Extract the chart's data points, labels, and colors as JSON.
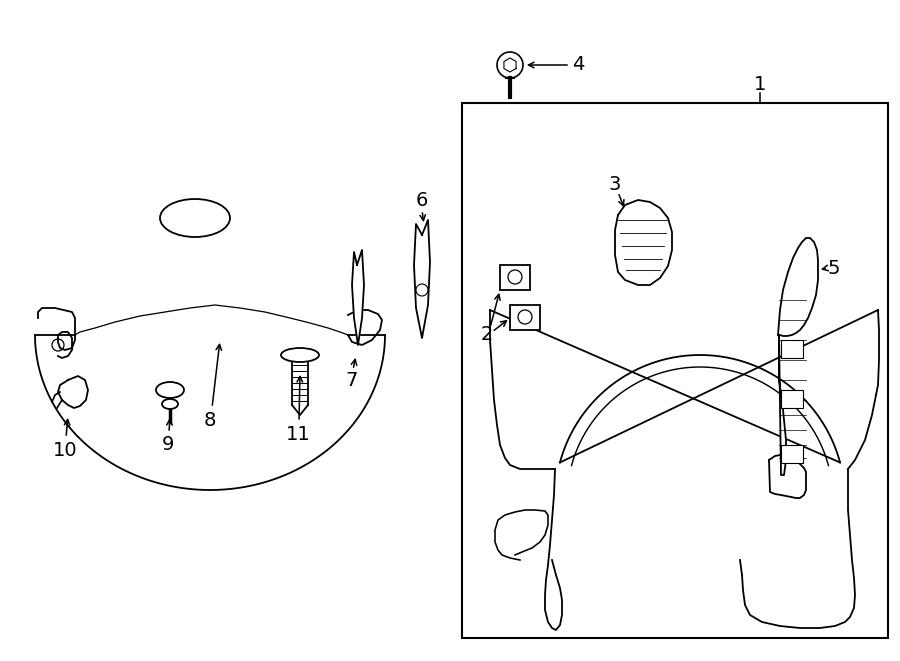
{
  "bg_color": "#ffffff",
  "line_color": "#000000",
  "lw": 1.3,
  "fs": 13
}
